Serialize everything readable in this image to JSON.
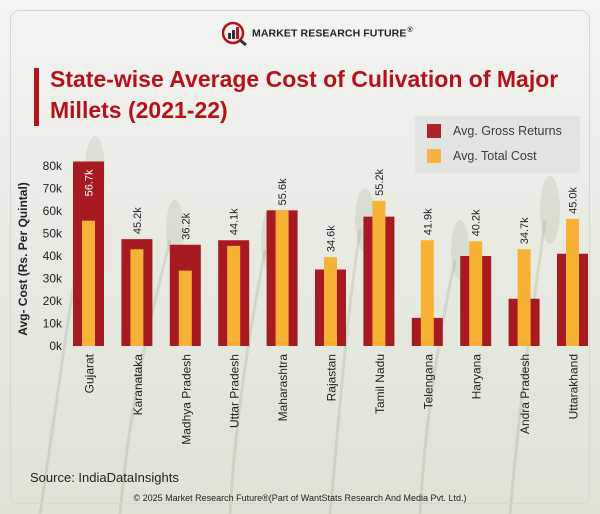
{
  "brand": {
    "name": "MARKET RESEARCH FUTURE",
    "registered": "®",
    "primary_color": "#b5121b"
  },
  "title": "State-wise Average Cost of Culivation of Major Millets (2021-22)",
  "legend": [
    {
      "label": "Avg. Gross Returns",
      "color": "#a81a22"
    },
    {
      "label": "Avg. Total Cost",
      "color": "#f7b135"
    }
  ],
  "source": "Source: IndiaDataInsights",
  "copyright": "© 2025 Market Research Future®(Part of WantStats Research And Media Pvt. Ltd.)",
  "chart_data": {
    "type": "bar",
    "title": "State-wise Average Cost of Culivation of Major Millets (2021-22)",
    "ylabel": "Avg- Cost (Rs. Per Quintal)",
    "xlabel": "",
    "ylim": [
      0,
      80000
    ],
    "ytick_values": [
      0,
      10000,
      20000,
      30000,
      40000,
      50000,
      60000,
      70000,
      80000
    ],
    "ytick_labels": [
      "0k",
      "10k",
      "20k",
      "30k",
      "40k",
      "50k",
      "60k",
      "70k",
      "80k"
    ],
    "categories": [
      "Gujarat",
      "Karanataka",
      "Madhya Pradesh",
      "Uttar Pradesh",
      "Maharashtra",
      "Rajastan",
      "Tamil Nadu",
      "Telengana",
      "Haryana",
      "Andra Pradesh",
      "Uttarakhand"
    ],
    "series": [
      {
        "name": "Avg. Gross Returns",
        "color": "#a81a22",
        "values": [
          82000,
          47500,
          45000,
          47000,
          60300,
          34000,
          57500,
          12500,
          40000,
          21000,
          41000
        ]
      },
      {
        "name": "Avg. Total Cost",
        "color": "#f7b135",
        "values": [
          55700,
          43000,
          33500,
          44500,
          60300,
          39500,
          64500,
          47000,
          46500,
          43000,
          56500
        ]
      }
    ],
    "data_labels": [
      "56.7k",
      "45.2k",
      "36.2k",
      "44.1k",
      "55.6k",
      "34.6k",
      "55.2k",
      "41.9k",
      "40.2k",
      "34.7k",
      "45.0k"
    ],
    "grid": false
  }
}
